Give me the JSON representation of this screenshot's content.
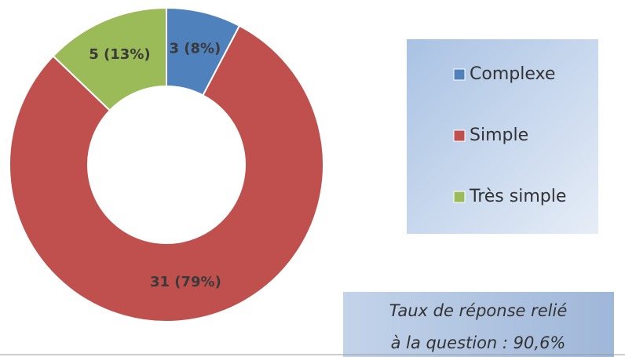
{
  "chart_data": {
    "type": "donut",
    "categories": [
      "Complexe",
      "Simple",
      "Très simple"
    ],
    "values": [
      3,
      31,
      5
    ],
    "value_labels": [
      "3 (8%)",
      "31 (79%)",
      "5 (13%)"
    ],
    "colors": [
      "#4f81bd",
      "#c0504d",
      "#9bbb59"
    ],
    "legend": "right",
    "annotation": [
      "Taux de réponse relié",
      "à la question : 90,6%"
    ]
  }
}
